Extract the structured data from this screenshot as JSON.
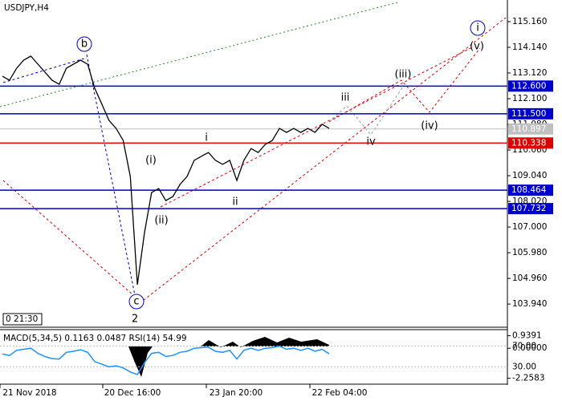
{
  "chart_data": {
    "type": "line",
    "title": "USDJPY,H4",
    "values": [
      112.99,
      112.83,
      113.31,
      113.63,
      113.79,
      113.47,
      113.15,
      112.83,
      112.67,
      113.31,
      113.47,
      113.63,
      113.47,
      112.51,
      111.88,
      111.24,
      110.92,
      110.44,
      109.01,
      104.71,
      106.78,
      108.37,
      108.53,
      108.05,
      108.21,
      108.69,
      109.01,
      109.65,
      109.81,
      109.96,
      109.65,
      109.49,
      109.65,
      108.85,
      109.65,
      110.12,
      109.96,
      110.28,
      110.44,
      110.92,
      110.76,
      110.92,
      110.76,
      110.92,
      110.76,
      111.08,
      110.92
    ],
    "color": "#000000",
    "ylim": [
      103.02,
      116.02
    ],
    "yticks": [
      {
        "value": 115.16,
        "label": "115.160"
      },
      {
        "value": 114.14,
        "label": "114.140"
      },
      {
        "value": 113.12,
        "label": "113.120"
      },
      {
        "value": 112.1,
        "label": "112.100"
      },
      {
        "value": 111.08,
        "label": "111.080"
      },
      {
        "value": 110.06,
        "label": "110.060"
      },
      {
        "value": 109.04,
        "label": "109.040"
      },
      {
        "value": 108.02,
        "label": "108.020"
      },
      {
        "value": 107,
        "label": "107.000"
      },
      {
        "value": 105.98,
        "label": "105.980"
      },
      {
        "value": 104.96,
        "label": "104.960"
      },
      {
        "value": 103.94,
        "label": "103.940"
      }
    ],
    "levels": [
      {
        "value": 112.6,
        "label": "112.600",
        "color": "#0000cc"
      },
      {
        "value": 111.5,
        "label": "111.500",
        "color": "#0000cc"
      },
      {
        "value": 110.897,
        "label": "110.897",
        "color": "#c0c0c0"
      },
      {
        "value": 110.338,
        "label": "110.338",
        "color": "#dd0000"
      },
      {
        "value": 108.464,
        "label": "108.464",
        "color": "#0000cc"
      },
      {
        "value": 107.732,
        "label": "107.732",
        "color": "#0000cc"
      }
    ],
    "annotations": [
      "b",
      "c",
      "2",
      "(i)",
      "(ii)",
      "i",
      "ii",
      "iii",
      "iv",
      "(iii)",
      "(iv)",
      "(v)",
      "i"
    ],
    "x_tick_labels": [
      "21 Nov 2018",
      "20 Dec 16:00",
      "23 Jan 20:00",
      "22 Feb 04:00"
    ],
    "time_box": "0 21:30",
    "indicator": {
      "text": "MACD(5,34,5) 0.1163 0.0487 RSI(14) 54.99",
      "macd_ylim": [
        -2.7,
        1.4
      ],
      "macd_ticks": [
        {
          "value": 0.9391,
          "label": "0.9391"
        },
        {
          "value": 0,
          "label": "0.00000"
        },
        {
          "value": -2.2583,
          "label": "-2.2583"
        }
      ],
      "rsi_ylim": [
        -3.6,
        102
      ],
      "rsi_ticks": [
        {
          "value": 70,
          "label": "70.00"
        },
        {
          "value": 30,
          "label": "30.00"
        }
      ],
      "rsi_color": "#1e90ff",
      "rsi": [
        55,
        52,
        62,
        64,
        66,
        56,
        50,
        46,
        45,
        58,
        60,
        63,
        58,
        40,
        35,
        30,
        32,
        28,
        20,
        15,
        38,
        56,
        58,
        50,
        52,
        58,
        60,
        66,
        67,
        68,
        60,
        58,
        62,
        45,
        62,
        66,
        62,
        66,
        67,
        70,
        64,
        66,
        62,
        66,
        60,
        64,
        55
      ]
    }
  }
}
